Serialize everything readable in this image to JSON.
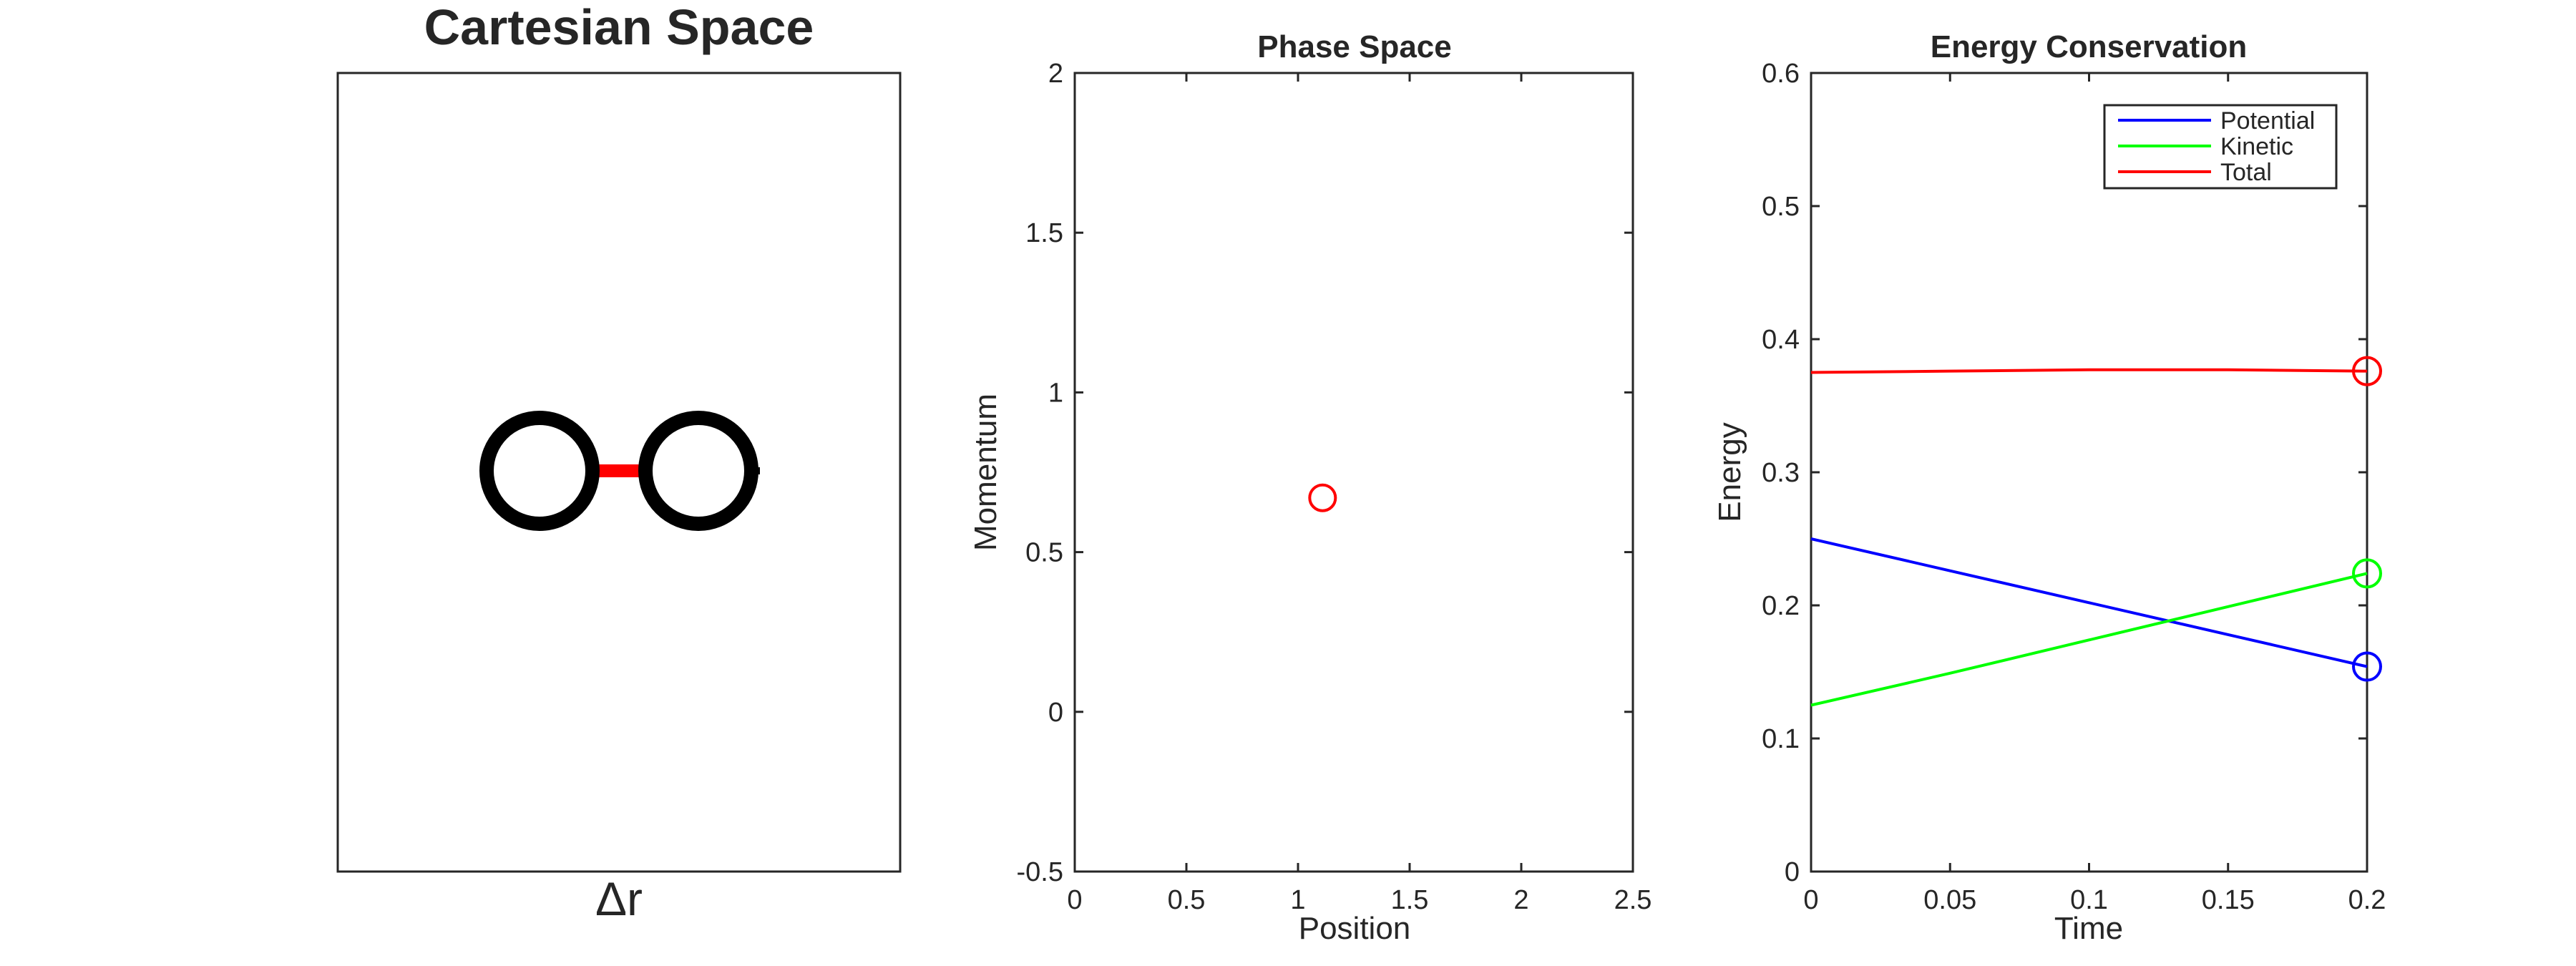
{
  "figure": {
    "title": "",
    "panels_note_removed": true
  },
  "chart_data": [
    {
      "type": "diagram",
      "title": "Cartesian Space",
      "xlabel": "Δr",
      "ylabel": "",
      "axes_ticks": false,
      "grid": false,
      "shapes": [
        {
          "name": "left-mass",
          "shape": "circle"
        },
        {
          "name": "right-mass",
          "shape": "circle"
        },
        {
          "name": "spring",
          "shape": "bar",
          "color": "#ff0000"
        }
      ],
      "colors": {
        "mass": "#000000",
        "spring": "#ff0000"
      }
    },
    {
      "type": "scatter",
      "title": "Phase Space",
      "xlabel": "Position",
      "ylabel": "Momentum",
      "xlim": [
        0,
        2.5
      ],
      "ylim": [
        -0.5,
        2
      ],
      "xticks": [
        0,
        0.5,
        1,
        1.5,
        2,
        2.5
      ],
      "xtick_labels": [
        "0",
        "0.5",
        "1",
        "1.5",
        "2",
        "2.5"
      ],
      "yticks": [
        -0.5,
        0,
        0.5,
        1,
        1.5,
        2
      ],
      "ytick_labels": [
        "-0.5",
        "0",
        "0.5",
        "1",
        "1.5",
        "2"
      ],
      "grid": false,
      "series": [
        {
          "x": [
            1.11
          ],
          "y": [
            0.67
          ],
          "color": "#ff0000",
          "marker": "circle-open"
        }
      ]
    },
    {
      "type": "line",
      "title": "Energy Conservation",
      "xlabel": "Time",
      "ylabel": "Energy",
      "xlim": [
        0,
        0.2
      ],
      "ylim": [
        0,
        0.6
      ],
      "xticks": [
        0,
        0.05,
        0.1,
        0.15,
        0.2
      ],
      "xtick_labels": [
        "0",
        "0.05",
        "0.1",
        "0.15",
        "0.2"
      ],
      "yticks": [
        0,
        0.1,
        0.2,
        0.3,
        0.4,
        0.5,
        0.6
      ],
      "ytick_labels": [
        "0",
        "0.1",
        "0.2",
        "0.3",
        "0.4",
        "0.5",
        "0.6"
      ],
      "grid": false,
      "legend_position": "top-right",
      "series": [
        {
          "name": "Potential",
          "color": "#0000ff",
          "x": [
            0,
            0.05,
            0.1,
            0.15,
            0.2
          ],
          "y": [
            0.25,
            0.226,
            0.202,
            0.178,
            0.154
          ],
          "end_marker": "circle-open"
        },
        {
          "name": "Kinetic",
          "color": "#00ff00",
          "x": [
            0,
            0.05,
            0.1,
            0.15,
            0.2
          ],
          "y": [
            0.125,
            0.149,
            0.174,
            0.199,
            0.224
          ],
          "end_marker": "circle-open"
        },
        {
          "name": "Total",
          "color": "#ff0000",
          "x": [
            0,
            0.05,
            0.1,
            0.15,
            0.2
          ],
          "y": [
            0.375,
            0.376,
            0.377,
            0.377,
            0.376
          ],
          "end_marker": "circle-open"
        }
      ]
    }
  ]
}
